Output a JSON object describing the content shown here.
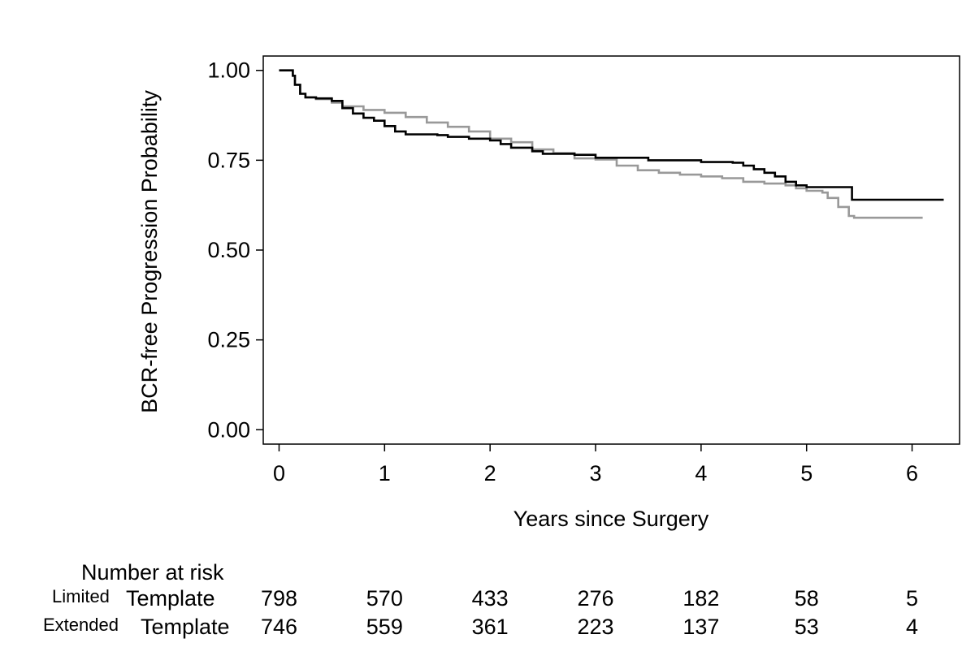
{
  "chart_data": {
    "type": "line",
    "title": "",
    "xlabel": "Years since Surgery",
    "ylabel": "BCR-free Progression Probability",
    "xlim": [
      -0.15,
      6.45
    ],
    "ylim": [
      -0.04,
      1.04
    ],
    "x_ticks": [
      0,
      1,
      2,
      3,
      4,
      5,
      6
    ],
    "y_ticks": [
      0,
      0.25,
      0.5,
      0.75,
      1
    ],
    "x_tick_labels": [
      "0",
      "1",
      "2",
      "3",
      "4",
      "5",
      "6"
    ],
    "y_tick_labels": [
      "0.00",
      "0.25",
      "0.50",
      "0.75",
      "1.00"
    ],
    "grid": false,
    "step": true,
    "series": [
      {
        "name": "Limited Template",
        "color": "#000000",
        "points": [
          [
            0,
            1.0
          ],
          [
            0.12,
            1.0
          ],
          [
            0.13,
            0.985
          ],
          [
            0.15,
            0.96
          ],
          [
            0.2,
            0.935
          ],
          [
            0.25,
            0.925
          ],
          [
            0.35,
            0.922
          ],
          [
            0.5,
            0.915
          ],
          [
            0.6,
            0.895
          ],
          [
            0.7,
            0.88
          ],
          [
            0.8,
            0.868
          ],
          [
            0.9,
            0.86
          ],
          [
            1.0,
            0.845
          ],
          [
            1.1,
            0.83
          ],
          [
            1.2,
            0.822
          ],
          [
            1.5,
            0.82
          ],
          [
            1.6,
            0.815
          ],
          [
            1.8,
            0.81
          ],
          [
            2.0,
            0.805
          ],
          [
            2.1,
            0.795
          ],
          [
            2.2,
            0.785
          ],
          [
            2.4,
            0.775
          ],
          [
            2.5,
            0.768
          ],
          [
            2.8,
            0.765
          ],
          [
            3.0,
            0.757
          ],
          [
            3.5,
            0.75
          ],
          [
            4.0,
            0.745
          ],
          [
            4.3,
            0.743
          ],
          [
            4.4,
            0.735
          ],
          [
            4.5,
            0.725
          ],
          [
            4.6,
            0.715
          ],
          [
            4.7,
            0.705
          ],
          [
            4.8,
            0.69
          ],
          [
            4.9,
            0.68
          ],
          [
            5.0,
            0.675
          ],
          [
            5.3,
            0.675
          ],
          [
            5.42,
            0.675
          ],
          [
            5.43,
            0.64
          ],
          [
            6.3,
            0.64
          ]
        ]
      },
      {
        "name": "Extended Template",
        "color": "#999999",
        "points": [
          [
            0,
            1.0
          ],
          [
            0.12,
            1.0
          ],
          [
            0.13,
            0.985
          ],
          [
            0.15,
            0.96
          ],
          [
            0.2,
            0.935
          ],
          [
            0.25,
            0.925
          ],
          [
            0.35,
            0.92
          ],
          [
            0.5,
            0.91
          ],
          [
            0.6,
            0.9
          ],
          [
            0.8,
            0.89
          ],
          [
            1.0,
            0.882
          ],
          [
            1.2,
            0.87
          ],
          [
            1.4,
            0.855
          ],
          [
            1.6,
            0.843
          ],
          [
            1.8,
            0.83
          ],
          [
            2.0,
            0.81
          ],
          [
            2.2,
            0.8
          ],
          [
            2.4,
            0.78
          ],
          [
            2.6,
            0.77
          ],
          [
            2.8,
            0.755
          ],
          [
            3.0,
            0.752
          ],
          [
            3.2,
            0.735
          ],
          [
            3.4,
            0.722
          ],
          [
            3.6,
            0.715
          ],
          [
            3.8,
            0.71
          ],
          [
            4.0,
            0.705
          ],
          [
            4.2,
            0.7
          ],
          [
            4.4,
            0.69
          ],
          [
            4.6,
            0.685
          ],
          [
            4.8,
            0.68
          ],
          [
            4.9,
            0.672
          ],
          [
            5.0,
            0.665
          ],
          [
            5.15,
            0.66
          ],
          [
            5.2,
            0.645
          ],
          [
            5.3,
            0.62
          ],
          [
            5.4,
            0.595
          ],
          [
            5.45,
            0.59
          ],
          [
            6.1,
            0.59
          ]
        ]
      }
    ]
  },
  "risk_table": {
    "title": "Number at risk",
    "rows": [
      {
        "group": "Limited",
        "template": "Template",
        "counts": [
          "798",
          "570",
          "433",
          "276",
          "182",
          "58",
          "5"
        ]
      },
      {
        "group": "Extended",
        "template": "Template",
        "counts": [
          "746",
          "559",
          "361",
          "223",
          "137",
          "53",
          "4"
        ]
      }
    ]
  }
}
